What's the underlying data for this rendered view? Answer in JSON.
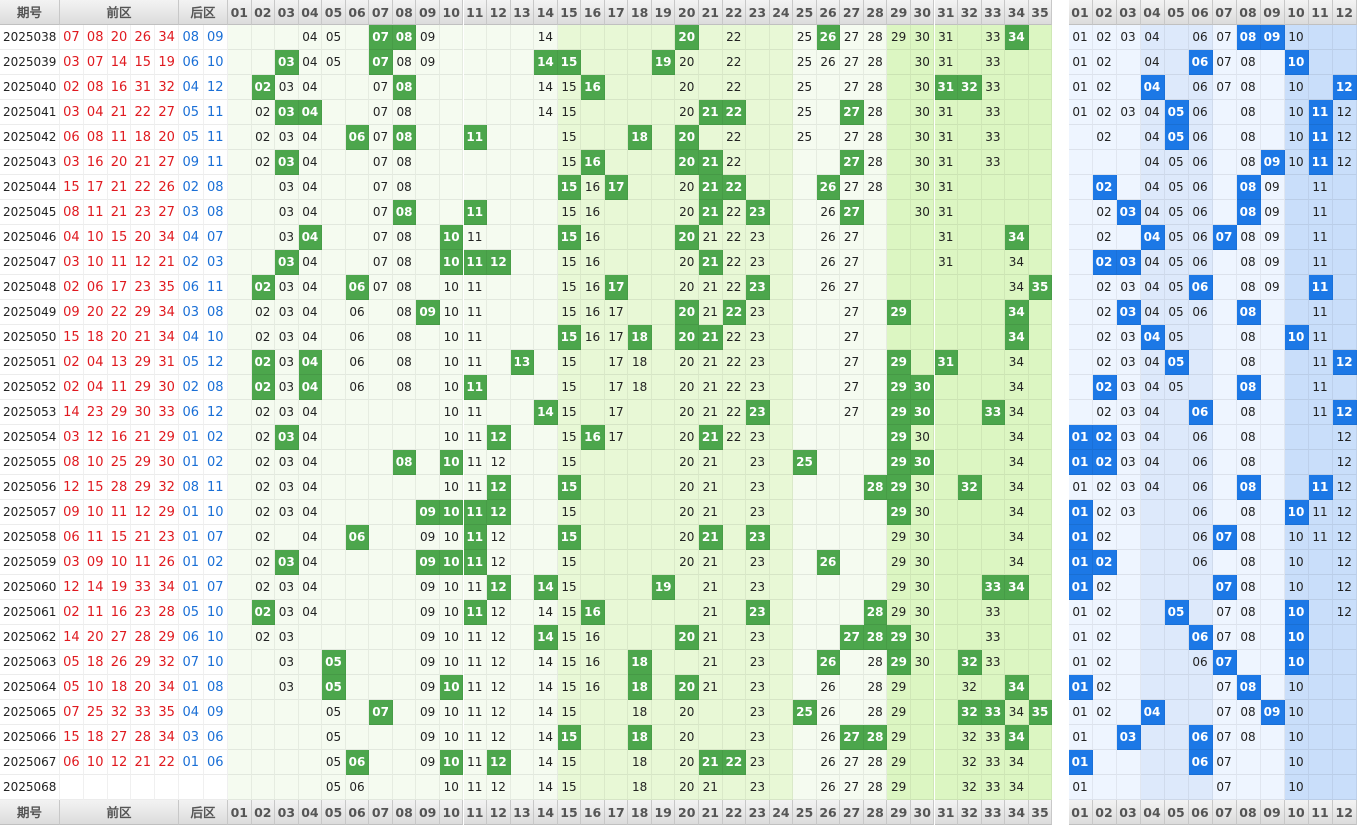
{
  "header": {
    "period_label": "期号",
    "front_label": "前区",
    "back_label": "后区",
    "front_cols": [
      "01",
      "02",
      "03",
      "04",
      "05",
      "06",
      "07",
      "08",
      "09",
      "10",
      "11",
      "12",
      "13",
      "14",
      "15",
      "16",
      "17",
      "18",
      "19",
      "20",
      "21",
      "22",
      "23",
      "24",
      "25",
      "26",
      "27",
      "28",
      "29",
      "30",
      "31",
      "32",
      "33",
      "34",
      "35"
    ],
    "back_cols": [
      "01",
      "02",
      "03",
      "04",
      "05",
      "06",
      "07",
      "08",
      "09",
      "10",
      "11",
      "12"
    ]
  },
  "colors": {
    "front_number_red": "#e0191f",
    "back_number_blue": "#1a6fd6",
    "front_hit_green": "#4ca64c",
    "back_hit_blue": "#1c78e6",
    "zone_front_1": "#f5fbf0",
    "zone_front_2": "#e8f8d6",
    "zone_front_3": "#dcf6c2",
    "zone_back_1": "#eef5ff",
    "zone_back_2": "#dde9fb",
    "zone_back_3": "#c9defa"
  },
  "rows": [
    {
      "period": "2025038",
      "front": [
        "07",
        "08",
        "20",
        "26",
        "34"
      ],
      "back": [
        "08",
        "09"
      ],
      "fs": [
        "04",
        "05",
        "08",
        "09",
        "14",
        "20",
        "22",
        "25",
        "27",
        "28",
        "29",
        "30",
        "31",
        "33"
      ],
      "bs": [
        "01",
        "02",
        "03",
        "04",
        "06",
        "07",
        "08",
        "10"
      ]
    },
    {
      "period": "2025039",
      "front": [
        "03",
        "07",
        "14",
        "15",
        "19"
      ],
      "back": [
        "06",
        "10"
      ],
      "fs": [
        "04",
        "05",
        "07",
        "08",
        "09",
        "14",
        "20",
        "22",
        "25",
        "26",
        "27",
        "28",
        "30",
        "31",
        "33"
      ],
      "bs": [
        "01",
        "02",
        "04",
        "06",
        "07",
        "08",
        "10"
      ]
    },
    {
      "period": "2025040",
      "front": [
        "02",
        "08",
        "16",
        "31",
        "32"
      ],
      "back": [
        "04",
        "12"
      ],
      "fs": [
        "03",
        "04",
        "07",
        "08",
        "14",
        "15",
        "20",
        "22",
        "25",
        "27",
        "28",
        "30",
        "33"
      ],
      "bs": [
        "01",
        "02",
        "04",
        "06",
        "07",
        "08",
        "10"
      ]
    },
    {
      "period": "2025041",
      "front": [
        "03",
        "04",
        "21",
        "22",
        "27"
      ],
      "back": [
        "05",
        "11"
      ],
      "fs": [
        "02",
        "04",
        "07",
        "08",
        "14",
        "15",
        "20",
        "22",
        "25",
        "27",
        "28",
        "30",
        "31",
        "33"
      ],
      "bs": [
        "01",
        "02",
        "03",
        "04",
        "06",
        "08",
        "10",
        "12"
      ]
    },
    {
      "period": "2025042",
      "front": [
        "06",
        "08",
        "11",
        "18",
        "20"
      ],
      "back": [
        "05",
        "11"
      ],
      "fs": [
        "02",
        "03",
        "04",
        "07",
        "08",
        "15",
        "20",
        "22",
        "25",
        "27",
        "28",
        "30",
        "31",
        "33"
      ],
      "bs": [
        "02",
        "04",
        "06",
        "08",
        "10",
        "12"
      ]
    },
    {
      "period": "2025043",
      "front": [
        "03",
        "16",
        "20",
        "21",
        "27"
      ],
      "back": [
        "09",
        "11"
      ],
      "fs": [
        "02",
        "03",
        "04",
        "07",
        "08",
        "15",
        "20",
        "22",
        "27",
        "28",
        "30",
        "31",
        "33"
      ],
      "bs": [
        "04",
        "05",
        "06",
        "08",
        "10",
        "11",
        "12"
      ]
    },
    {
      "period": "2025044",
      "front": [
        "15",
        "17",
        "21",
        "22",
        "26"
      ],
      "back": [
        "02",
        "08"
      ],
      "fs": [
        "03",
        "04",
        "07",
        "08",
        "15",
        "16",
        "20",
        "21",
        "22",
        "27",
        "28",
        "30",
        "31"
      ],
      "bs": [
        "04",
        "05",
        "06",
        "08",
        "09",
        "11"
      ]
    },
    {
      "period": "2025045",
      "front": [
        "08",
        "11",
        "21",
        "23",
        "27"
      ],
      "back": [
        "03",
        "08"
      ],
      "fs": [
        "03",
        "04",
        "07",
        "08",
        "15",
        "16",
        "20",
        "21",
        "22",
        "26",
        "27",
        "30",
        "31"
      ],
      "bs": [
        "02",
        "04",
        "05",
        "06",
        "08",
        "09",
        "11"
      ]
    },
    {
      "period": "2025046",
      "front": [
        "04",
        "10",
        "15",
        "20",
        "34"
      ],
      "back": [
        "04",
        "07"
      ],
      "fs": [
        "03",
        "04",
        "07",
        "08",
        "11",
        "15",
        "16",
        "20",
        "21",
        "22",
        "23",
        "26",
        "27",
        "31"
      ],
      "bs": [
        "02",
        "04",
        "05",
        "06",
        "08",
        "09",
        "11"
      ]
    },
    {
      "period": "2025047",
      "front": [
        "03",
        "10",
        "11",
        "12",
        "21"
      ],
      "back": [
        "02",
        "03"
      ],
      "fs": [
        "03",
        "04",
        "07",
        "08",
        "11",
        "15",
        "16",
        "20",
        "21",
        "22",
        "23",
        "26",
        "27",
        "31",
        "34"
      ],
      "bs": [
        "04",
        "05",
        "06",
        "08",
        "09",
        "11"
      ]
    },
    {
      "period": "2025048",
      "front": [
        "02",
        "06",
        "17",
        "23",
        "35"
      ],
      "back": [
        "06",
        "11"
      ],
      "fs": [
        "03",
        "04",
        "07",
        "08",
        "10",
        "11",
        "15",
        "16",
        "20",
        "21",
        "22",
        "26",
        "27",
        "34"
      ],
      "bs": [
        "02",
        "03",
        "04",
        "05",
        "08",
        "09",
        "11"
      ]
    },
    {
      "period": "2025049",
      "front": [
        "09",
        "20",
        "22",
        "29",
        "34"
      ],
      "back": [
        "03",
        "08"
      ],
      "fs": [
        "02",
        "03",
        "04",
        "06",
        "08",
        "10",
        "11",
        "15",
        "16",
        "17",
        "20",
        "21",
        "22",
        "23",
        "27",
        "34"
      ],
      "bs": [
        "02",
        "03",
        "04",
        "05",
        "06",
        "08",
        "11"
      ]
    },
    {
      "period": "2025050",
      "front": [
        "15",
        "18",
        "20",
        "21",
        "34"
      ],
      "back": [
        "04",
        "10"
      ],
      "fs": [
        "02",
        "03",
        "04",
        "06",
        "08",
        "10",
        "11",
        "15",
        "16",
        "17",
        "20",
        "21",
        "22",
        "23",
        "27",
        "34"
      ],
      "bs": [
        "02",
        "03",
        "04",
        "05",
        "08",
        "11"
      ]
    },
    {
      "period": "2025051",
      "front": [
        "02",
        "04",
        "13",
        "29",
        "31"
      ],
      "back": [
        "05",
        "12"
      ],
      "fs": [
        "03",
        "04",
        "06",
        "08",
        "10",
        "11",
        "15",
        "17",
        "18",
        "20",
        "21",
        "22",
        "23",
        "27",
        "34"
      ],
      "bs": [
        "02",
        "03",
        "04",
        "05",
        "08",
        "11"
      ]
    },
    {
      "period": "2025052",
      "front": [
        "02",
        "04",
        "11",
        "29",
        "30"
      ],
      "back": [
        "02",
        "08"
      ],
      "fs": [
        "02",
        "03",
        "04",
        "06",
        "08",
        "10",
        "11",
        "15",
        "17",
        "18",
        "20",
        "21",
        "22",
        "23",
        "27",
        "29",
        "34"
      ],
      "bs": [
        "02",
        "03",
        "04",
        "05",
        "08",
        "11"
      ]
    },
    {
      "period": "2025053",
      "front": [
        "14",
        "23",
        "29",
        "30",
        "33"
      ],
      "back": [
        "06",
        "12"
      ],
      "fs": [
        "02",
        "03",
        "04",
        "10",
        "11",
        "15",
        "17",
        "20",
        "21",
        "22",
        "23",
        "27",
        "29",
        "34"
      ],
      "bs": [
        "02",
        "03",
        "04",
        "08",
        "11"
      ]
    },
    {
      "period": "2025054",
      "front": [
        "03",
        "12",
        "16",
        "21",
        "29"
      ],
      "back": [
        "01",
        "02"
      ],
      "fs": [
        "02",
        "04",
        "10",
        "11",
        "15",
        "17",
        "20",
        "21",
        "22",
        "23",
        "29",
        "30",
        "34"
      ],
      "bs": [
        "02",
        "03",
        "04",
        "06",
        "08",
        "12"
      ]
    },
    {
      "period": "2025055",
      "front": [
        "08",
        "10",
        "25",
        "29",
        "30"
      ],
      "back": [
        "01",
        "02"
      ],
      "fs": [
        "02",
        "03",
        "04",
        "10",
        "11",
        "12",
        "15",
        "20",
        "21",
        "23",
        "29",
        "30",
        "34"
      ],
      "bs": [
        "02",
        "03",
        "04",
        "06",
        "08",
        "12"
      ]
    },
    {
      "period": "2025056",
      "front": [
        "12",
        "15",
        "28",
        "29",
        "32"
      ],
      "back": [
        "08",
        "11"
      ],
      "fs": [
        "02",
        "03",
        "04",
        "10",
        "11",
        "12",
        "15",
        "20",
        "21",
        "23",
        "29",
        "30",
        "34"
      ],
      "bs": [
        "01",
        "02",
        "03",
        "04",
        "06",
        "08",
        "12"
      ]
    },
    {
      "period": "2025057",
      "front": [
        "09",
        "10",
        "11",
        "12",
        "29"
      ],
      "back": [
        "01",
        "10"
      ],
      "fs": [
        "02",
        "03",
        "04",
        "10",
        "11",
        "12",
        "15",
        "20",
        "21",
        "23",
        "29",
        "30",
        "34"
      ],
      "bs": [
        "01",
        "02",
        "03",
        "06",
        "08",
        "11",
        "12"
      ]
    },
    {
      "period": "2025058",
      "front": [
        "06",
        "11",
        "15",
        "21",
        "23"
      ],
      "back": [
        "01",
        "07"
      ],
      "fs": [
        "02",
        "04",
        "09",
        "10",
        "11",
        "12",
        "15",
        "20",
        "21",
        "23",
        "29",
        "30",
        "34"
      ],
      "bs": [
        "01",
        "02",
        "06",
        "08",
        "10",
        "11",
        "12"
      ]
    },
    {
      "period": "2025059",
      "front": [
        "03",
        "09",
        "10",
        "11",
        "26"
      ],
      "back": [
        "01",
        "02"
      ],
      "fs": [
        "02",
        "04",
        "09",
        "10",
        "11",
        "12",
        "15",
        "20",
        "21",
        "23",
        "29",
        "30",
        "34"
      ],
      "bs": [
        "01",
        "02",
        "06",
        "08",
        "10",
        "12"
      ]
    },
    {
      "period": "2025060",
      "front": [
        "12",
        "14",
        "19",
        "33",
        "34"
      ],
      "back": [
        "01",
        "07"
      ],
      "fs": [
        "02",
        "03",
        "04",
        "09",
        "10",
        "11",
        "12",
        "15",
        "21",
        "23",
        "29",
        "30"
      ],
      "bs": [
        "01",
        "02",
        "08",
        "10",
        "12"
      ]
    },
    {
      "period": "2025061",
      "front": [
        "02",
        "11",
        "16",
        "23",
        "28"
      ],
      "back": [
        "05",
        "10"
      ],
      "fs": [
        "02",
        "03",
        "04",
        "09",
        "10",
        "11",
        "12",
        "14",
        "15",
        "21",
        "23",
        "29",
        "30",
        "33"
      ],
      "bs": [
        "01",
        "02",
        "07",
        "08",
        "12"
      ]
    },
    {
      "period": "2025062",
      "front": [
        "14",
        "20",
        "27",
        "28",
        "29"
      ],
      "back": [
        "06",
        "10"
      ],
      "fs": [
        "02",
        "03",
        "09",
        "10",
        "11",
        "12",
        "14",
        "15",
        "16",
        "21",
        "23",
        "28",
        "29",
        "30",
        "33"
      ],
      "bs": [
        "01",
        "02",
        "07",
        "08",
        "10"
      ]
    },
    {
      "period": "2025063",
      "front": [
        "05",
        "18",
        "26",
        "29",
        "32"
      ],
      "back": [
        "07",
        "10"
      ],
      "fs": [
        "03",
        "09",
        "10",
        "11",
        "12",
        "14",
        "15",
        "16",
        "21",
        "23",
        "28",
        "29",
        "30",
        "33"
      ],
      "bs": [
        "01",
        "02",
        "06",
        "07",
        "10"
      ]
    },
    {
      "period": "2025064",
      "front": [
        "05",
        "10",
        "18",
        "20",
        "34"
      ],
      "back": [
        "01",
        "08"
      ],
      "fs": [
        "03",
        "09",
        "10",
        "11",
        "12",
        "14",
        "15",
        "16",
        "21",
        "23",
        "26",
        "28",
        "29",
        "32"
      ],
      "bs": [
        "01",
        "02",
        "07",
        "10"
      ]
    },
    {
      "period": "2025065",
      "front": [
        "07",
        "25",
        "32",
        "33",
        "35"
      ],
      "back": [
        "04",
        "09"
      ],
      "fs": [
        "05",
        "09",
        "10",
        "11",
        "12",
        "14",
        "15",
        "18",
        "20",
        "23",
        "26",
        "28",
        "29",
        "32",
        "34"
      ],
      "bs": [
        "01",
        "02",
        "07",
        "08",
        "10"
      ]
    },
    {
      "period": "2025066",
      "front": [
        "15",
        "18",
        "27",
        "28",
        "34"
      ],
      "back": [
        "03",
        "06"
      ],
      "fs": [
        "05",
        "09",
        "10",
        "11",
        "12",
        "14",
        "15",
        "18",
        "20",
        "23",
        "26",
        "28",
        "29",
        "32",
        "33",
        "34"
      ],
      "bs": [
        "01",
        "07",
        "08",
        "10"
      ]
    },
    {
      "period": "2025067",
      "front": [
        "06",
        "10",
        "12",
        "21",
        "22"
      ],
      "back": [
        "01",
        "06"
      ],
      "fs": [
        "05",
        "09",
        "10",
        "11",
        "12",
        "14",
        "15",
        "18",
        "20",
        "23",
        "26",
        "27",
        "28",
        "29",
        "32",
        "33",
        "34"
      ],
      "bs": [
        "01",
        "06",
        "07",
        "10"
      ]
    },
    {
      "period": "2025068",
      "front": [],
      "back": [],
      "fs": [
        "05",
        "06",
        "10",
        "11",
        "12",
        "14",
        "15",
        "18",
        "20",
        "21",
        "23",
        "26",
        "27",
        "28",
        "29",
        "32",
        "33",
        "34"
      ],
      "bs": [
        "01",
        "07",
        "10"
      ]
    }
  ]
}
